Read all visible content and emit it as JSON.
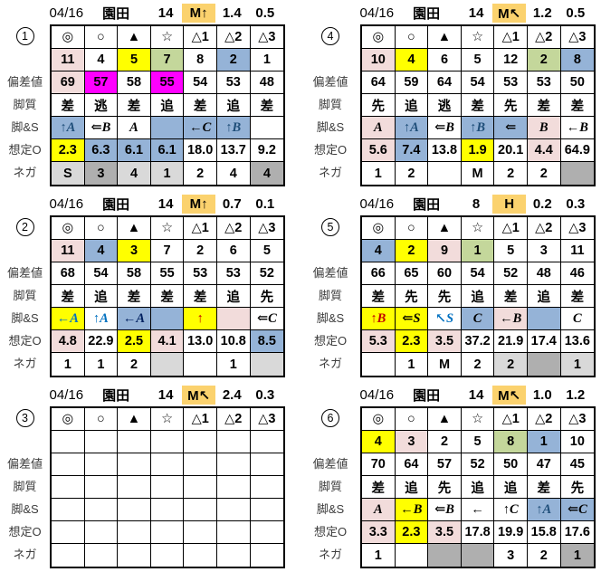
{
  "colors": {
    "W": "#FFFFFF",
    "P": "#F2DCDB",
    "Y": "#FFFF00",
    "G": "#C4D79B",
    "B": "#95B3D7",
    "M": "#FF00FF",
    "O": "#FBD26E",
    "L": "#D9D9D9",
    "D": "#AFAFAF"
  },
  "row_labels": [
    "偏差値",
    "脚質",
    "脚&S",
    "想定O",
    "ネガ"
  ],
  "symbols": [
    "◎",
    "○",
    "▲",
    "☆",
    "△1",
    "△2",
    "△3"
  ],
  "tables": [
    {
      "no": "1",
      "header": {
        "date": "04/16",
        "track": "園田",
        "race": "14",
        "pace": "M↑",
        "pace_bg": "O",
        "v1": "1.4",
        "v2": "0.5"
      },
      "num": [
        [
          "11",
          "P"
        ],
        [
          "4",
          "W"
        ],
        [
          "5",
          "Y"
        ],
        [
          "7",
          "G"
        ],
        [
          "8",
          "W"
        ],
        [
          "2",
          "B"
        ],
        [
          "1",
          "W"
        ]
      ],
      "hensa": [
        [
          "69",
          "P"
        ],
        [
          "57",
          "M"
        ],
        [
          "58",
          "W"
        ],
        [
          "55",
          "M"
        ],
        [
          "54",
          "W"
        ],
        [
          "53",
          "W"
        ],
        [
          "48",
          "W"
        ]
      ],
      "kyaku": [
        [
          "差",
          "W"
        ],
        [
          "逃",
          "W"
        ],
        [
          "差",
          "W"
        ],
        [
          "追",
          "W"
        ],
        [
          "差",
          "W"
        ],
        [
          "追",
          "W"
        ],
        [
          "差",
          "W"
        ]
      ],
      "ashi": [
        [
          "↑A",
          "B",
          "#1F4E79"
        ],
        [
          "⇐B",
          "W"
        ],
        [
          "A",
          "W"
        ],
        [
          "",
          "B"
        ],
        [
          "←C",
          "B"
        ],
        [
          "↑B",
          "B",
          "#1F4E79"
        ],
        [
          "",
          "W"
        ]
      ],
      "odds": [
        [
          "2.3",
          "Y"
        ],
        [
          "6.3",
          "B"
        ],
        [
          "6.1",
          "B"
        ],
        [
          "6.1",
          "B"
        ],
        [
          "18.0",
          "W"
        ],
        [
          "13.7",
          "W"
        ],
        [
          "9.2",
          "W"
        ]
      ],
      "nega": [
        [
          "S",
          "L"
        ],
        [
          "3",
          "D"
        ],
        [
          "4",
          "L"
        ],
        [
          "1",
          "L"
        ],
        [
          "2",
          "W"
        ],
        [
          "4",
          "W"
        ],
        [
          "4",
          "D"
        ]
      ]
    },
    {
      "no": "4",
      "header": {
        "date": "04/16",
        "track": "園田",
        "race": "14",
        "pace": "M↖",
        "pace_bg": "O",
        "v1": "1.2",
        "v2": "0.5"
      },
      "num": [
        [
          "10",
          "P"
        ],
        [
          "4",
          "Y"
        ],
        [
          "6",
          "W"
        ],
        [
          "5",
          "W"
        ],
        [
          "12",
          "W"
        ],
        [
          "2",
          "G"
        ],
        [
          "8",
          "B"
        ]
      ],
      "hensa": [
        [
          "64",
          "W"
        ],
        [
          "59",
          "W"
        ],
        [
          "64",
          "W"
        ],
        [
          "54",
          "W"
        ],
        [
          "53",
          "W"
        ],
        [
          "53",
          "W"
        ],
        [
          "50",
          "W"
        ]
      ],
      "kyaku": [
        [
          "先",
          "W"
        ],
        [
          "追",
          "W"
        ],
        [
          "逃",
          "W"
        ],
        [
          "差",
          "W"
        ],
        [
          "先",
          "W"
        ],
        [
          "差",
          "W"
        ],
        [
          "差",
          "W"
        ]
      ],
      "ashi": [
        [
          "A",
          "P"
        ],
        [
          "↑A",
          "B",
          "#1F4E79"
        ],
        [
          "⇐B",
          "W"
        ],
        [
          "↑B",
          "B",
          "#1F4E79"
        ],
        [
          "⇐",
          "B"
        ],
        [
          "B",
          "P"
        ],
        [
          "←B",
          "W"
        ]
      ],
      "odds": [
        [
          "5.6",
          "P"
        ],
        [
          "7.4",
          "B"
        ],
        [
          "13.8",
          "W"
        ],
        [
          "1.9",
          "Y"
        ],
        [
          "20.1",
          "W"
        ],
        [
          "4.4",
          "P"
        ],
        [
          "64.9",
          "W"
        ]
      ],
      "nega": [
        [
          "1",
          "W"
        ],
        [
          "2",
          "W"
        ],
        [
          "",
          "W"
        ],
        [
          "M",
          "W"
        ],
        [
          "2",
          "W"
        ],
        [
          "2",
          "W"
        ],
        [
          "",
          "D"
        ]
      ]
    },
    {
      "no": "2",
      "header": {
        "date": "04/16",
        "track": "園田",
        "race": "14",
        "pace": "M↑",
        "pace_bg": "O",
        "v1": "0.7",
        "v2": "0.1"
      },
      "num": [
        [
          "11",
          "P"
        ],
        [
          "4",
          "B"
        ],
        [
          "3",
          "Y"
        ],
        [
          "7",
          "W"
        ],
        [
          "2",
          "W"
        ],
        [
          "6",
          "W"
        ],
        [
          "5",
          "W"
        ]
      ],
      "hensa": [
        [
          "68",
          "W"
        ],
        [
          "54",
          "W"
        ],
        [
          "58",
          "W"
        ],
        [
          "55",
          "W"
        ],
        [
          "53",
          "W"
        ],
        [
          "53",
          "W"
        ],
        [
          "52",
          "W"
        ]
      ],
      "kyaku": [
        [
          "差",
          "W"
        ],
        [
          "追",
          "W"
        ],
        [
          "差",
          "W"
        ],
        [
          "差",
          "W"
        ],
        [
          "差",
          "W"
        ],
        [
          "追",
          "W"
        ],
        [
          "先",
          "W"
        ]
      ],
      "ashi": [
        [
          "←A",
          "Y",
          "#0070C0"
        ],
        [
          "↑A",
          "W",
          "#0070C0"
        ],
        [
          "←A",
          "B",
          "#002060"
        ],
        [
          "",
          "B"
        ],
        [
          "↑",
          "Y",
          "#C00000"
        ],
        [
          "",
          "P"
        ],
        [
          "⇐C",
          "W"
        ]
      ],
      "odds": [
        [
          "4.8",
          "P"
        ],
        [
          "22.9",
          "W"
        ],
        [
          "2.5",
          "Y"
        ],
        [
          "4.1",
          "P"
        ],
        [
          "13.0",
          "W"
        ],
        [
          "10.8",
          "W"
        ],
        [
          "8.5",
          "B"
        ]
      ],
      "nega": [
        [
          "1",
          "W"
        ],
        [
          "1",
          "W"
        ],
        [
          "2",
          "W"
        ],
        [
          "",
          "L"
        ],
        [
          "",
          "W"
        ],
        [
          "1",
          "W"
        ],
        [
          "",
          "L"
        ]
      ]
    },
    {
      "no": "5",
      "header": {
        "date": "04/16",
        "track": "園田",
        "race": "8",
        "pace": "H",
        "pace_bg": "O",
        "v1": "0.2",
        "v2": "0.3"
      },
      "num": [
        [
          "4",
          "B"
        ],
        [
          "2",
          "Y"
        ],
        [
          "9",
          "P"
        ],
        [
          "1",
          "G"
        ],
        [
          "5",
          "W"
        ],
        [
          "3",
          "W"
        ],
        [
          "11",
          "W"
        ]
      ],
      "hensa": [
        [
          "66",
          "W"
        ],
        [
          "65",
          "W"
        ],
        [
          "60",
          "W"
        ],
        [
          "54",
          "W"
        ],
        [
          "52",
          "W"
        ],
        [
          "48",
          "W"
        ],
        [
          "46",
          "W"
        ]
      ],
      "kyaku": [
        [
          "差",
          "W"
        ],
        [
          "先",
          "W"
        ],
        [
          "先",
          "W"
        ],
        [
          "追",
          "W"
        ],
        [
          "差",
          "W"
        ],
        [
          "追",
          "W"
        ],
        [
          "差",
          "W"
        ]
      ],
      "ashi": [
        [
          "↑B",
          "Y",
          "#C00000"
        ],
        [
          "⇐S",
          "Y"
        ],
        [
          "↖S",
          "W",
          "#0070C0"
        ],
        [
          "C",
          "B"
        ],
        [
          "←B",
          "P"
        ],
        [
          "",
          "B"
        ],
        [
          "C",
          "W"
        ]
      ],
      "odds": [
        [
          "5.3",
          "P"
        ],
        [
          "2.3",
          "Y"
        ],
        [
          "3.5",
          "P"
        ],
        [
          "37.2",
          "W"
        ],
        [
          "21.9",
          "W"
        ],
        [
          "17.4",
          "W"
        ],
        [
          "13.6",
          "W"
        ]
      ],
      "nega": [
        [
          "",
          "W"
        ],
        [
          "1",
          "W"
        ],
        [
          "M",
          "W"
        ],
        [
          "2",
          "W"
        ],
        [
          "2",
          "L"
        ],
        [
          "",
          "D"
        ],
        [
          "1",
          "L"
        ]
      ]
    },
    {
      "no": "3",
      "header": {
        "date": "04/16",
        "track": "園田",
        "race": "14",
        "pace": "M↖",
        "pace_bg": "O",
        "v1": "2.4",
        "v2": "0.3"
      },
      "num": [
        [
          "",
          "W"
        ],
        [
          "",
          "W"
        ],
        [
          "",
          "W"
        ],
        [
          "",
          "W"
        ],
        [
          "",
          "W"
        ],
        [
          "",
          "W"
        ],
        [
          "",
          "W"
        ]
      ],
      "hensa": [
        [
          "",
          "W"
        ],
        [
          "",
          "W"
        ],
        [
          "",
          "W"
        ],
        [
          "",
          "W"
        ],
        [
          "",
          "W"
        ],
        [
          "",
          "W"
        ],
        [
          "",
          "W"
        ]
      ],
      "kyaku": [
        [
          "",
          "W"
        ],
        [
          "",
          "W"
        ],
        [
          "",
          "W"
        ],
        [
          "",
          "W"
        ],
        [
          "",
          "W"
        ],
        [
          "",
          "W"
        ],
        [
          "",
          "W"
        ]
      ],
      "ashi": [
        [
          "",
          "W"
        ],
        [
          "",
          "W"
        ],
        [
          "",
          "W"
        ],
        [
          "",
          "W"
        ],
        [
          "",
          "W"
        ],
        [
          "",
          "W"
        ],
        [
          "",
          "W"
        ]
      ],
      "odds": [
        [
          "",
          "W"
        ],
        [
          "",
          "W"
        ],
        [
          "",
          "W"
        ],
        [
          "",
          "W"
        ],
        [
          "",
          "W"
        ],
        [
          "",
          "W"
        ],
        [
          "",
          "W"
        ]
      ],
      "nega": [
        [
          "",
          "W"
        ],
        [
          "",
          "W"
        ],
        [
          "",
          "W"
        ],
        [
          "",
          "W"
        ],
        [
          "",
          "W"
        ],
        [
          "",
          "W"
        ],
        [
          "",
          "W"
        ]
      ]
    },
    {
      "no": "6",
      "header": {
        "date": "04/16",
        "track": "園田",
        "race": "14",
        "pace": "M↖",
        "pace_bg": "O",
        "v1": "1.0",
        "v2": "1.2"
      },
      "num": [
        [
          "4",
          "Y"
        ],
        [
          "3",
          "P"
        ],
        [
          "2",
          "W"
        ],
        [
          "5",
          "W"
        ],
        [
          "8",
          "G"
        ],
        [
          "1",
          "B"
        ],
        [
          "10",
          "W"
        ]
      ],
      "hensa": [
        [
          "70",
          "W"
        ],
        [
          "64",
          "W"
        ],
        [
          "57",
          "W"
        ],
        [
          "52",
          "W"
        ],
        [
          "50",
          "W"
        ],
        [
          "47",
          "W"
        ],
        [
          "45",
          "W"
        ]
      ],
      "kyaku": [
        [
          "差",
          "W"
        ],
        [
          "追",
          "W"
        ],
        [
          "先",
          "W"
        ],
        [
          "追",
          "W"
        ],
        [
          "追",
          "W"
        ],
        [
          "差",
          "W"
        ],
        [
          "先",
          "W"
        ]
      ],
      "ashi": [
        [
          "A",
          "P"
        ],
        [
          "←B",
          "Y"
        ],
        [
          "⇐B",
          "W"
        ],
        [
          "←",
          "W"
        ],
        [
          "↑C",
          "W"
        ],
        [
          "↑A",
          "B",
          "#1F4E79"
        ],
        [
          "⇐C",
          "B"
        ]
      ],
      "odds": [
        [
          "3.3",
          "P"
        ],
        [
          "2.3",
          "Y"
        ],
        [
          "3.5",
          "P"
        ],
        [
          "17.8",
          "W"
        ],
        [
          "19.9",
          "W"
        ],
        [
          "15.8",
          "W"
        ],
        [
          "17.6",
          "W"
        ]
      ],
      "nega": [
        [
          "1",
          "W"
        ],
        [
          "",
          "W"
        ],
        [
          "",
          "D"
        ],
        [
          "",
          "D"
        ],
        [
          "3",
          "W"
        ],
        [
          "2",
          "W"
        ],
        [
          "1",
          "D"
        ]
      ]
    }
  ]
}
